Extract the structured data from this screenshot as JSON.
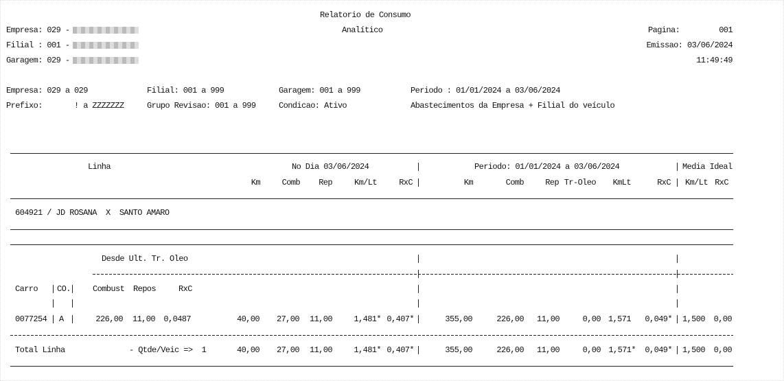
{
  "header": {
    "title": "Relatorio de Consumo",
    "subtitle": "Analítico",
    "empresa": "Empresa: 029 -",
    "filial": "Filial : 001 -",
    "garagem": "Garagem: 029 -",
    "pagina_label": "Pagina:",
    "pagina": "001",
    "emissao": "Emissao: 03/06/2024",
    "hora": "11:49:49"
  },
  "filters": {
    "empresa": "Empresa: 029 a 029",
    "filial": "Filial: 001 a 999",
    "garagem": "Garagem: 001 a 999",
    "periodo": "Periodo : 01/01/2024 a 03/06/2024",
    "prefixo_label": "Prefixo:",
    "prefixo": "! a ZZZZZZZ",
    "grupo": "Grupo Revisao: 001 a 999",
    "condicao": "Condicao: Ativo",
    "abastecimentos": "Abastecimentos da Empresa + Filial do veículo"
  },
  "columns": {
    "linha": "Linha",
    "no_dia": "No Dia 03/06/2024",
    "periodo": "Periodo: 01/01/2024 a 03/06/2024",
    "media_ideal": "Media Ideal",
    "headers": [
      "Km",
      "Comb",
      "Rep",
      "Km/Lt",
      "RxC",
      "Km",
      "Comb",
      "Rep",
      "Tr-Oleo",
      "KmLt",
      "RxC",
      "Km/Lt",
      "RxC"
    ]
  },
  "linha": "604921 / JD ROSANA  X  SANTO AMARO",
  "section": {
    "title": "Desde Ult. Tr. Oleo",
    "headers": [
      "Carro",
      "CO.",
      "Combust",
      "Repos",
      "RxC"
    ]
  },
  "row": {
    "carro": "0077254",
    "co": "A",
    "combust": "226,00",
    "repos": "11,00",
    "rxc": "0,0487",
    "values": [
      "40,00",
      "27,00",
      "11,00",
      "1,481*",
      "0,407*",
      "355,00",
      "226,00",
      "11,00",
      "0,00",
      "1,571",
      "0,049*",
      "1,500",
      "0,00"
    ]
  },
  "total": {
    "label": "Total Linha",
    "qtde": "- Qtde/Veic =>  1",
    "values": [
      "40,00",
      "27,00",
      "11,00",
      "1,481*",
      "0,407*",
      "355,00",
      "226,00",
      "11,00",
      "0,00",
      "1,571*",
      "0,049*",
      "1,500",
      "0,00"
    ]
  }
}
